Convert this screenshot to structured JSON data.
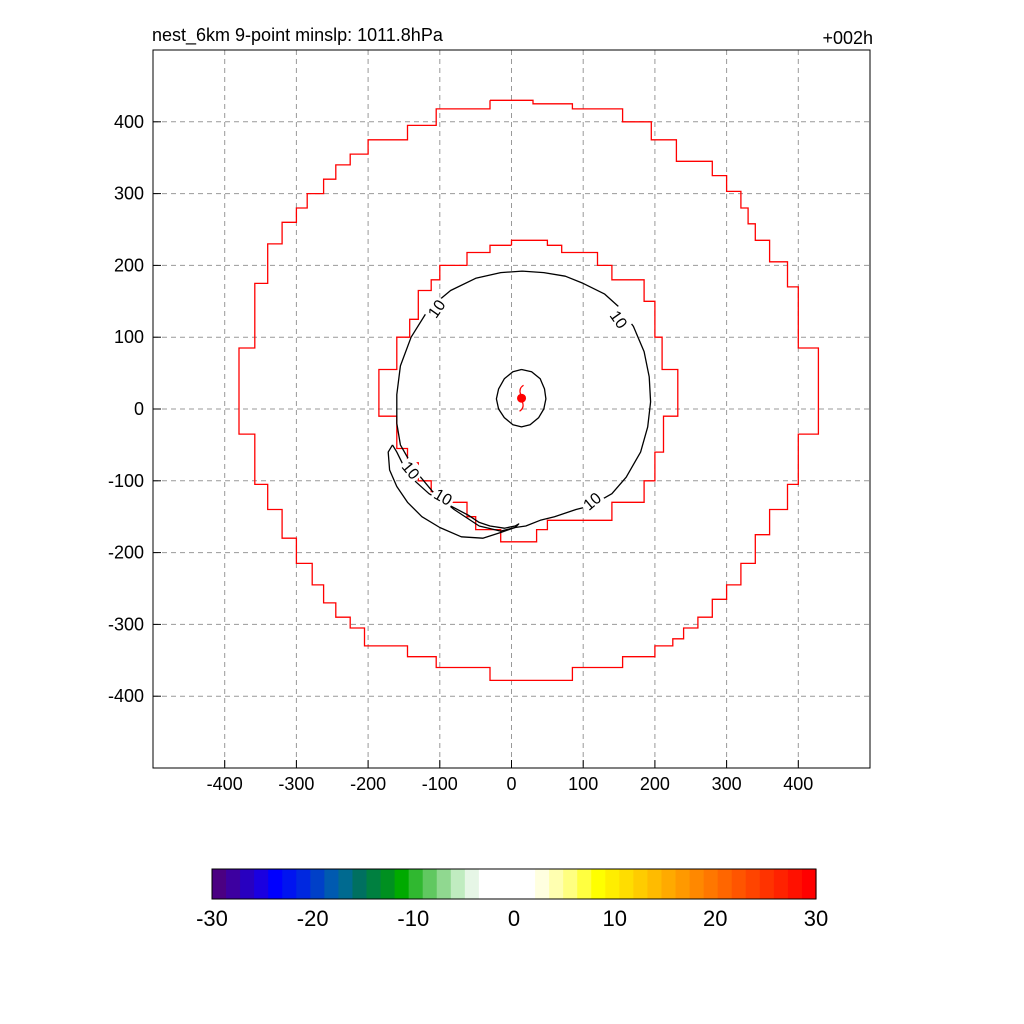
{
  "chart_data": {
    "type": "contour",
    "title_left": "nest_6km  9-point minslp: 1011.8hPa",
    "title_right": "+002h",
    "xlim": [
      -500,
      500
    ],
    "ylim": [
      -500,
      500
    ],
    "x_ticks": [
      -400,
      -300,
      -200,
      -100,
      0,
      100,
      200,
      300,
      400
    ],
    "y_ticks": [
      400,
      300,
      200,
      100,
      0,
      -100,
      -200,
      -300,
      -400
    ],
    "x_tick_labels": [
      "-400",
      "-300",
      "-200",
      "-100",
      "0",
      "100",
      "200",
      "300",
      "400"
    ],
    "y_tick_labels": [
      "400",
      "300",
      "200",
      "100",
      "0",
      "-100",
      "-200",
      "-300",
      "-400"
    ],
    "grid": true,
    "grid_style": "dashed",
    "storm_center": {
      "x": 14,
      "y": 15,
      "marker_color": "#ff0000"
    },
    "boundaries": [
      {
        "color": "#ff0000",
        "points": [
          [
            -30,
            430
          ],
          [
            30,
            430
          ],
          [
            30,
            425
          ],
          [
            85,
            425
          ],
          [
            85,
            418
          ],
          [
            155,
            418
          ],
          [
            155,
            400
          ],
          [
            195,
            400
          ],
          [
            195,
            375
          ],
          [
            230,
            375
          ],
          [
            230,
            345
          ],
          [
            280,
            345
          ],
          [
            280,
            325
          ],
          [
            300,
            325
          ],
          [
            300,
            303
          ],
          [
            320,
            303
          ],
          [
            320,
            280
          ],
          [
            330,
            280
          ],
          [
            330,
            258
          ],
          [
            340,
            258
          ],
          [
            340,
            235
          ],
          [
            360,
            235
          ],
          [
            360,
            205
          ],
          [
            385,
            205
          ],
          [
            385,
            170
          ],
          [
            400,
            170
          ],
          [
            400,
            85
          ],
          [
            428,
            85
          ],
          [
            428,
            -35
          ],
          [
            400,
            -35
          ],
          [
            400,
            -105
          ],
          [
            385,
            -105
          ],
          [
            385,
            -140
          ],
          [
            360,
            -140
          ],
          [
            360,
            -175
          ],
          [
            340,
            -175
          ],
          [
            340,
            -215
          ],
          [
            320,
            -215
          ],
          [
            320,
            -245
          ],
          [
            300,
            -245
          ],
          [
            300,
            -265
          ],
          [
            280,
            -265
          ],
          [
            280,
            -290
          ],
          [
            260,
            -290
          ],
          [
            260,
            -305
          ],
          [
            240,
            -305
          ],
          [
            240,
            -320
          ],
          [
            225,
            -320
          ],
          [
            225,
            -330
          ],
          [
            200,
            -330
          ],
          [
            200,
            -345
          ],
          [
            155,
            -345
          ],
          [
            155,
            -360
          ],
          [
            85,
            -360
          ],
          [
            85,
            -378
          ],
          [
            -30,
            -378
          ],
          [
            -30,
            -360
          ],
          [
            -105,
            -360
          ],
          [
            -105,
            -345
          ],
          [
            -145,
            -345
          ],
          [
            -145,
            -330
          ],
          [
            -205,
            -330
          ],
          [
            -205,
            -305
          ],
          [
            -225,
            -305
          ],
          [
            -225,
            -290
          ],
          [
            -245,
            -290
          ],
          [
            -245,
            -270
          ],
          [
            -262,
            -270
          ],
          [
            -262,
            -245
          ],
          [
            -278,
            -245
          ],
          [
            -278,
            -215
          ],
          [
            -300,
            -215
          ],
          [
            -300,
            -180
          ],
          [
            -320,
            -180
          ],
          [
            -320,
            -140
          ],
          [
            -340,
            -140
          ],
          [
            -340,
            -105
          ],
          [
            -358,
            -105
          ],
          [
            -358,
            -35
          ],
          [
            -380,
            -35
          ],
          [
            -380,
            85
          ],
          [
            -358,
            85
          ],
          [
            -358,
            175
          ],
          [
            -340,
            175
          ],
          [
            -340,
            230
          ],
          [
            -320,
            230
          ],
          [
            -320,
            260
          ],
          [
            -300,
            260
          ],
          [
            -300,
            280
          ],
          [
            -285,
            280
          ],
          [
            -285,
            300
          ],
          [
            -262,
            300
          ],
          [
            -262,
            320
          ],
          [
            -245,
            320
          ],
          [
            -245,
            340
          ],
          [
            -225,
            340
          ],
          [
            -225,
            355
          ],
          [
            -200,
            355
          ],
          [
            -200,
            375
          ],
          [
            -145,
            375
          ],
          [
            -145,
            395
          ],
          [
            -105,
            395
          ],
          [
            -105,
            418
          ],
          [
            -30,
            418
          ],
          [
            -30,
            430
          ]
        ]
      },
      {
        "color": "#ff0000",
        "points": [
          [
            0,
            228
          ],
          [
            0,
            235
          ],
          [
            50,
            235
          ],
          [
            50,
            228
          ],
          [
            70,
            228
          ],
          [
            70,
            218
          ],
          [
            120,
            218
          ],
          [
            120,
            200
          ],
          [
            140,
            200
          ],
          [
            140,
            180
          ],
          [
            185,
            180
          ],
          [
            185,
            150
          ],
          [
            200,
            150
          ],
          [
            200,
            100
          ],
          [
            210,
            100
          ],
          [
            210,
            55
          ],
          [
            232,
            55
          ],
          [
            232,
            -10
          ],
          [
            212,
            -10
          ],
          [
            212,
            -60
          ],
          [
            200,
            -60
          ],
          [
            200,
            -100
          ],
          [
            185,
            -100
          ],
          [
            185,
            -130
          ],
          [
            140,
            -130
          ],
          [
            140,
            -155
          ],
          [
            50,
            -155
          ],
          [
            50,
            -168
          ],
          [
            35,
            -168
          ],
          [
            35,
            -185
          ],
          [
            -15,
            -185
          ],
          [
            -15,
            -168
          ],
          [
            -50,
            -168
          ],
          [
            -50,
            -150
          ],
          [
            -62,
            -150
          ],
          [
            -62,
            -130
          ],
          [
            -90,
            -130
          ],
          [
            -90,
            -115
          ],
          [
            -112,
            -115
          ],
          [
            -112,
            -100
          ],
          [
            -130,
            -100
          ],
          [
            -130,
            -75
          ],
          [
            -145,
            -75
          ],
          [
            -145,
            -55
          ],
          [
            -160,
            -55
          ],
          [
            -160,
            -10
          ],
          [
            -185,
            -10
          ],
          [
            -185,
            55
          ],
          [
            -160,
            55
          ],
          [
            -160,
            100
          ],
          [
            -142,
            100
          ],
          [
            -142,
            125
          ],
          [
            -130,
            125
          ],
          [
            -130,
            165
          ],
          [
            -112,
            165
          ],
          [
            -112,
            180
          ],
          [
            -100,
            180
          ],
          [
            -100,
            200
          ],
          [
            -62,
            200
          ],
          [
            -62,
            218
          ],
          [
            -30,
            218
          ],
          [
            -30,
            228
          ],
          [
            0,
            228
          ]
        ]
      }
    ],
    "contours": [
      {
        "level": "10",
        "color": "#000000",
        "points": [
          [
            15,
            192
          ],
          [
            45,
            190
          ],
          [
            75,
            185
          ],
          [
            100,
            175
          ],
          [
            130,
            160
          ],
          [
            150,
            142
          ],
          [
            170,
            115
          ],
          [
            185,
            80
          ],
          [
            192,
            45
          ],
          [
            194,
            10
          ],
          [
            190,
            -25
          ],
          [
            180,
            -60
          ],
          [
            160,
            -95
          ],
          [
            140,
            -118
          ],
          [
            110,
            -135
          ],
          [
            90,
            -140
          ],
          [
            60,
            -150
          ],
          [
            40,
            -155
          ],
          [
            20,
            -163
          ],
          [
            5,
            -165
          ],
          [
            -15,
            -170
          ],
          [
            -45,
            -163
          ],
          [
            -80,
            -140
          ],
          [
            -110,
            -115
          ],
          [
            -135,
            -85
          ],
          [
            -155,
            -50
          ],
          [
            -160,
            -20
          ],
          [
            -160,
            20
          ],
          [
            -155,
            60
          ],
          [
            -140,
            100
          ],
          [
            -115,
            140
          ],
          [
            -85,
            165
          ],
          [
            -50,
            182
          ],
          [
            -15,
            190
          ],
          [
            15,
            192
          ]
        ]
      },
      {
        "level": "10",
        "color": "#000000",
        "points": [
          [
            -166,
            -50
          ],
          [
            -160,
            -60
          ],
          [
            -150,
            -80
          ],
          [
            -135,
            -100
          ],
          [
            -115,
            -118
          ],
          [
            -85,
            -135
          ],
          [
            -60,
            -148
          ],
          [
            -45,
            -158
          ],
          [
            -30,
            -163
          ],
          [
            -10,
            -166
          ],
          [
            5,
            -163
          ],
          [
            10,
            -160
          ],
          [
            5,
            -165
          ],
          [
            -15,
            -172
          ],
          [
            -40,
            -180
          ],
          [
            -70,
            -178
          ],
          [
            -100,
            -165
          ],
          [
            -125,
            -150
          ],
          [
            -145,
            -130
          ],
          [
            -160,
            -108
          ],
          [
            -170,
            -85
          ],
          [
            -172,
            -60
          ],
          [
            -166,
            -50
          ]
        ]
      },
      {
        "level": "",
        "color": "#000000",
        "points": [
          [
            14,
            55
          ],
          [
            28,
            52
          ],
          [
            40,
            42
          ],
          [
            46,
            28
          ],
          [
            48,
            14
          ],
          [
            45,
            0
          ],
          [
            38,
            -12
          ],
          [
            26,
            -22
          ],
          [
            14,
            -25
          ],
          [
            2,
            -22
          ],
          [
            -10,
            -12
          ],
          [
            -18,
            0
          ],
          [
            -21,
            14
          ],
          [
            -18,
            28
          ],
          [
            -10,
            42
          ],
          [
            2,
            52
          ],
          [
            14,
            55
          ]
        ]
      }
    ],
    "contour_labels": [
      {
        "text": "10",
        "x": -105,
        "y": 140,
        "angle": -55
      },
      {
        "text": "10",
        "x": 150,
        "y": 125,
        "angle": 55
      },
      {
        "text": "10",
        "x": 112,
        "y": -128,
        "angle": -40
      },
      {
        "text": "10",
        "x": -140,
        "y": -85,
        "angle": 50
      },
      {
        "text": "10",
        "x": -95,
        "y": -122,
        "angle": 30
      }
    ],
    "colorbar": {
      "min": -30,
      "max": 30,
      "ticks": [
        "-30",
        "-20",
        "-10",
        "0",
        "10",
        "20",
        "30"
      ],
      "colors": [
        "#4b0082",
        "#3d00a0",
        "#2800c0",
        "#1a00e0",
        "#0000ff",
        "#0014f0",
        "#0028e0",
        "#0040c8",
        "#005ab0",
        "#006a90",
        "#007060",
        "#008040",
        "#009020",
        "#00aa00",
        "#30b830",
        "#60c860",
        "#90d890",
        "#c0ecc0",
        "#e6f6e6",
        "#ffffff",
        "#ffffff",
        "#ffffff",
        "#ffffff",
        "#ffffe0",
        "#ffffb0",
        "#ffff80",
        "#ffff40",
        "#ffff00",
        "#ffee00",
        "#ffdd00",
        "#ffcc00",
        "#ffbb00",
        "#ffaa00",
        "#ff9900",
        "#ff8800",
        "#ff7700",
        "#ff6600",
        "#ff5500",
        "#ff4400",
        "#ff3300",
        "#ff2200",
        "#ff1100",
        "#ff0000"
      ]
    }
  }
}
